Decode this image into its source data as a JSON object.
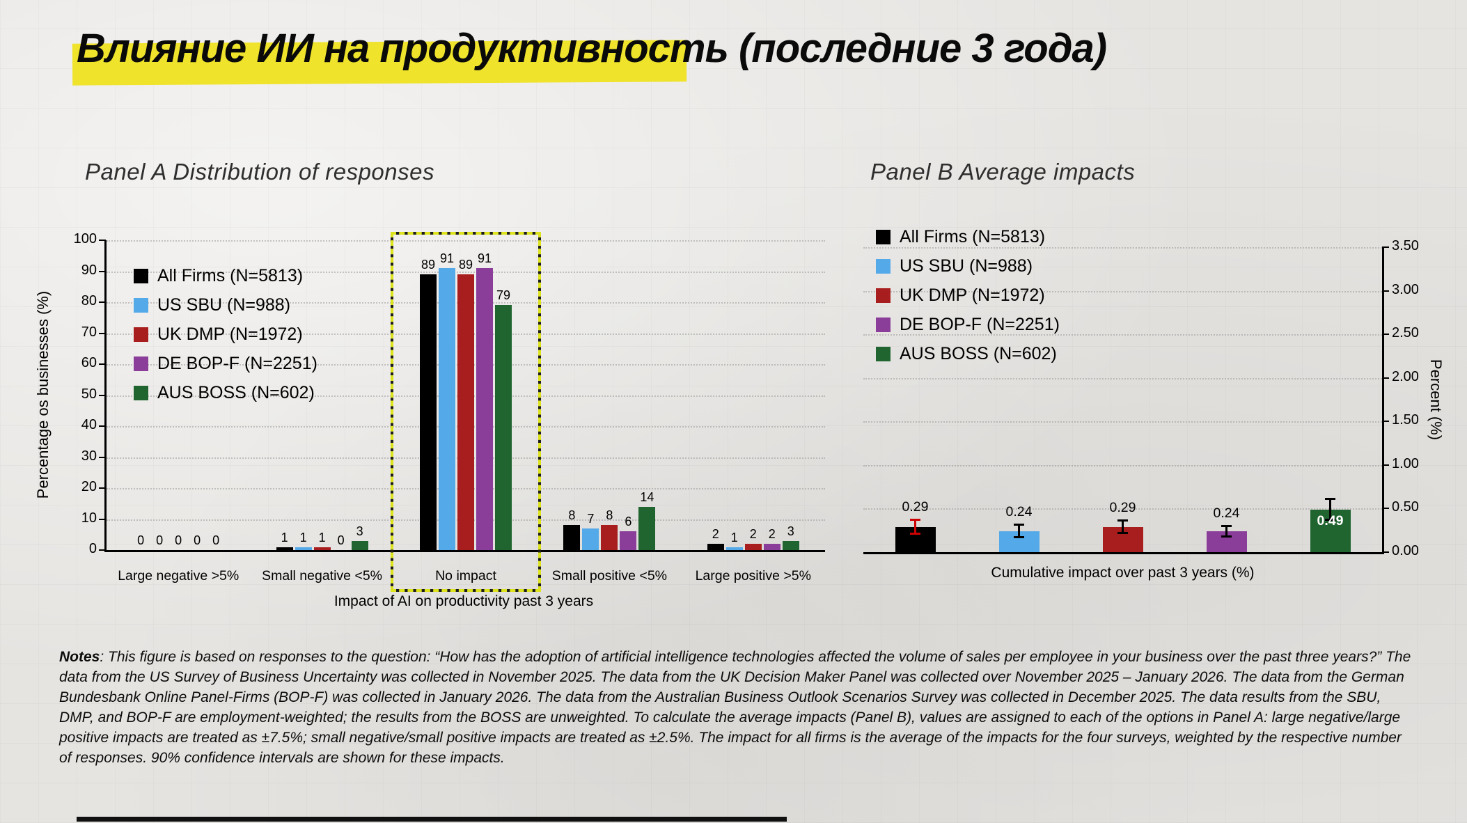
{
  "slide": {
    "title": "Влияние ИИ на продуктивность (последние 3 года)"
  },
  "chart_data": [
    {
      "type": "bar",
      "title": "Panel A Distribution of responses",
      "categories": [
        "Large negative >5%",
        "Small negative <5%",
        "No impact",
        "Small positive <5%",
        "Large positive >5%"
      ],
      "series": [
        {
          "name": "All Firms (N=5813)",
          "color": "#000000",
          "values": [
            0,
            1,
            89,
            8,
            2
          ]
        },
        {
          "name": "US SBU (N=988)",
          "color": "#54A9E8",
          "values": [
            0,
            1,
            91,
            7,
            1
          ]
        },
        {
          "name": "UK DMP (N=1972)",
          "color": "#A81D1D",
          "values": [
            0,
            1,
            89,
            8,
            2
          ]
        },
        {
          "name": "DE BOP-F (N=2251)",
          "color": "#8A3D99",
          "values": [
            0,
            0,
            91,
            6,
            2
          ]
        },
        {
          "name": "AUS BOSS (N=602)",
          "color": "#20652F",
          "values": [
            0,
            3,
            79,
            14,
            3
          ]
        }
      ],
      "xlabel": "Impact of AI on productivity past 3 years",
      "ylabel": "Percentage os businesses (%)",
      "ylim": [
        0,
        100
      ],
      "yticks": [
        0,
        10,
        20,
        30,
        40,
        50,
        60,
        70,
        80,
        90,
        100
      ],
      "grid": "horizontal-dotted",
      "legend_position": "top-left-inside",
      "highlight_category": "No impact"
    },
    {
      "type": "bar",
      "title": "Panel B Average impacts",
      "categories": [
        "Cumulative impact over past 3 years (%)"
      ],
      "series": [
        {
          "name": "All Firms (N=5813)",
          "color": "#000000",
          "values": [
            0.29
          ],
          "error": 0.07,
          "error_color": "#CC0000",
          "label_inside": false
        },
        {
          "name": "US SBU (N=988)",
          "color": "#54A9E8",
          "values": [
            0.24
          ],
          "error": 0.06,
          "error_color": "#000000",
          "label_inside": false
        },
        {
          "name": "UK DMP (N=1972)",
          "color": "#A81D1D",
          "values": [
            0.29
          ],
          "error": 0.06,
          "error_color": "#000000",
          "label_inside": false
        },
        {
          "name": "DE BOP-F (N=2251)",
          "color": "#8A3D99",
          "values": [
            0.24
          ],
          "error": 0.05,
          "error_color": "#000000",
          "label_inside": false
        },
        {
          "name": "AUS BOSS (N=602)",
          "color": "#20652F",
          "values": [
            0.49
          ],
          "error": 0.11,
          "error_color": "#000000",
          "label_inside": true
        }
      ],
      "value_labels": [
        "0.29",
        "0.24",
        "0.29",
        "0.24",
        "0.49"
      ],
      "xlabel": "Cumulative impact over past 3 years (%)",
      "ylabel": "Percent (%)",
      "ylim": [
        0,
        3.5
      ],
      "yticks": [
        0,
        0.5,
        1,
        1.5,
        2,
        2.5,
        3,
        3.5
      ],
      "grid": "horizontal-dotted",
      "legend_position": "top-left",
      "confidence_interval": "90%"
    }
  ],
  "notes": {
    "label": "Notes",
    "text": ": This figure is based on responses to the question: “How has the adoption of artificial intelligence technologies affected the volume of sales per employee in your business over the past three years?” The data from the US Survey of Business Uncertainty was collected in November 2025. The data from the UK Decision Maker Panel was collected over November 2025 – January 2026. The data from the German Bundesbank Online Panel-Firms (BOP-F) was collected in January 2026. The data from the Australian Business Outlook Scenarios Survey was collected in December 2025. The data results from the SBU, DMP, and BOP-F are employment-weighted; the results from the BOSS are unweighted. To calculate the average impacts (Panel B), values are assigned to each of the options in Panel A: large negative/large positive impacts are treated as ±7.5%; small negative/small positive impacts are treated as ±2.5%. The impact for all firms is the average of the impacts for the four surveys, weighted by the respective number of responses. 90% confidence intervals are shown for these impacts."
  }
}
